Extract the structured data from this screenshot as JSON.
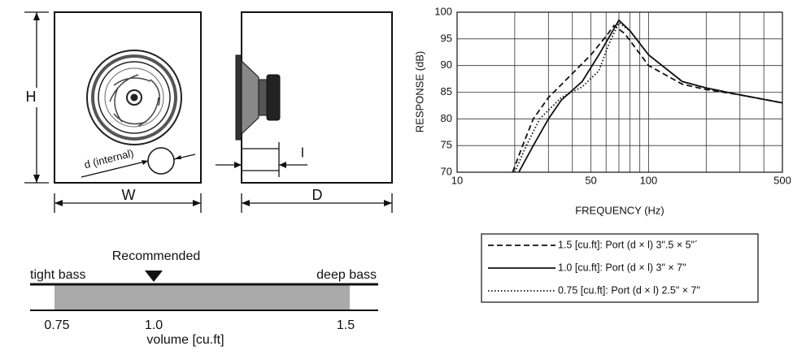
{
  "diagram": {
    "front_labels": {
      "height": "H",
      "width": "W",
      "port": "d (internal)"
    },
    "side_labels": {
      "depth": "D",
      "port_length": "l"
    },
    "volume_scale": {
      "recommended": "Recommended",
      "left": "tight bass",
      "right": "deep bass",
      "ticks": [
        "0.75",
        "1.0",
        "1.5"
      ],
      "axis_label": "volume [cu.ft]"
    }
  },
  "chart_data": {
    "type": "line",
    "xlabel": "FREQUENCY (Hz)",
    "ylabel": "RESPONSE (dB)",
    "xscale": "log",
    "xlim": [
      10,
      500
    ],
    "xticks": [
      10,
      50,
      100,
      500
    ],
    "xminor": [
      20,
      30,
      40,
      60,
      70,
      80,
      90,
      200,
      300,
      400
    ],
    "ylim": [
      70,
      100
    ],
    "yticks": [
      70,
      75,
      80,
      85,
      90,
      95,
      100
    ],
    "grid": true,
    "series": [
      {
        "name": "1.5 [cu.ft]: Port (d × l) 3\".5 × 5\"´",
        "color": "#111",
        "dash": "dashed",
        "x": [
          19.5,
          22,
          25,
          30,
          40,
          50,
          60,
          66,
          75,
          100,
          150,
          200,
          300,
          500
        ],
        "values": [
          70,
          75,
          80,
          84,
          88.5,
          92,
          95.5,
          97.5,
          96,
          90,
          86.5,
          85.5,
          84.5,
          83
        ]
      },
      {
        "name": "1.0 [cu.ft]: Port (d × l) 3\" × 7\"",
        "color": "#111",
        "dash": "solid",
        "x": [
          21,
          25,
          30,
          35,
          45,
          55,
          65,
          70,
          80,
          100,
          150,
          200,
          300,
          500
        ],
        "values": [
          70,
          75,
          80,
          83.5,
          87,
          92,
          96.5,
          98.5,
          96.5,
          92,
          87,
          85.8,
          84.5,
          83
        ]
      },
      {
        "name": "0.75 [cu.ft]: Port (d × l) 2.5\" × 7\"",
        "color": "#111",
        "dash": "dotted",
        "x": [
          20,
          23,
          27,
          35,
          45,
          55,
          62,
          70,
          80,
          100,
          150,
          200,
          300,
          500
        ],
        "values": [
          70,
          75,
          80,
          84,
          86,
          89,
          94,
          98,
          96.5,
          92,
          87,
          85.8,
          84.5,
          83
        ]
      }
    ]
  }
}
